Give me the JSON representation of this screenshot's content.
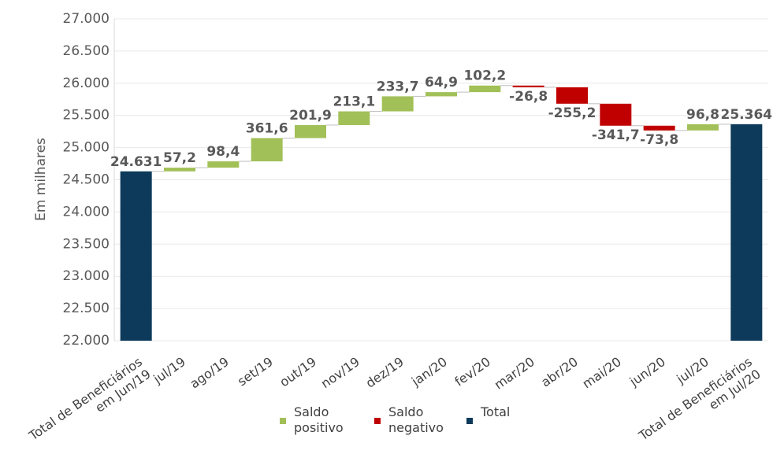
{
  "chart_data": {
    "type": "waterfall",
    "ylabel": "Em milhares",
    "categories": [
      "Total de Beneficiários em  Jun/19",
      "jul/19",
      "ago/19",
      "set/19",
      "out/19",
      "nov/19",
      "dez/19",
      "jan/20",
      "fev/20",
      "mar/20",
      "abr/20",
      "mai/20",
      "jun/20",
      "jul/20",
      "Total de Beneficiários em Jul/20"
    ],
    "series": [
      {
        "name": "Saldo positivo",
        "color": "#a2c058",
        "values": [
          null,
          57.2,
          98.4,
          361.6,
          201.9,
          213.1,
          233.7,
          64.9,
          102.2,
          null,
          null,
          null,
          null,
          96.8,
          null
        ],
        "value_labels": [
          null,
          "57,2",
          "98,4",
          "361,6",
          "201,9",
          "213,1",
          "233,7",
          "64,9",
          "102,2",
          null,
          null,
          null,
          null,
          "96,8",
          null
        ]
      },
      {
        "name": "Saldo negativo",
        "color": "#c00000",
        "values": [
          null,
          null,
          null,
          null,
          null,
          null,
          null,
          null,
          null,
          -26.8,
          -255.2,
          -341.7,
          -73.8,
          null,
          null
        ],
        "value_labels": [
          null,
          null,
          null,
          null,
          null,
          null,
          null,
          null,
          null,
          "-26,8",
          "-255,2",
          "-341,7",
          "-73,8",
          null,
          null
        ]
      },
      {
        "name": "Total",
        "color": "#0d3a5a",
        "absolute": true,
        "values": [
          24631,
          null,
          null,
          null,
          null,
          null,
          null,
          null,
          null,
          null,
          null,
          null,
          null,
          null,
          25364
        ],
        "value_labels": [
          "24.631",
          null,
          null,
          null,
          null,
          null,
          null,
          null,
          null,
          null,
          null,
          null,
          null,
          null,
          "25.364"
        ]
      }
    ],
    "ylim": [
      22000,
      27000
    ],
    "yticks": [
      {
        "value": 22000,
        "label": "22.000"
      },
      {
        "value": 22500,
        "label": "22.500"
      },
      {
        "value": 23000,
        "label": "23.000"
      },
      {
        "value": 23500,
        "label": "23.500"
      },
      {
        "value": 24000,
        "label": "24.000"
      },
      {
        "value": 24500,
        "label": "24.500"
      },
      {
        "value": 25000,
        "label": "25.000"
      },
      {
        "value": 25500,
        "label": "25.500"
      },
      {
        "value": 26000,
        "label": "26.000"
      },
      {
        "value": 26500,
        "label": "26.500"
      },
      {
        "value": 27000,
        "label": "27.000"
      }
    ],
    "grid": true
  }
}
